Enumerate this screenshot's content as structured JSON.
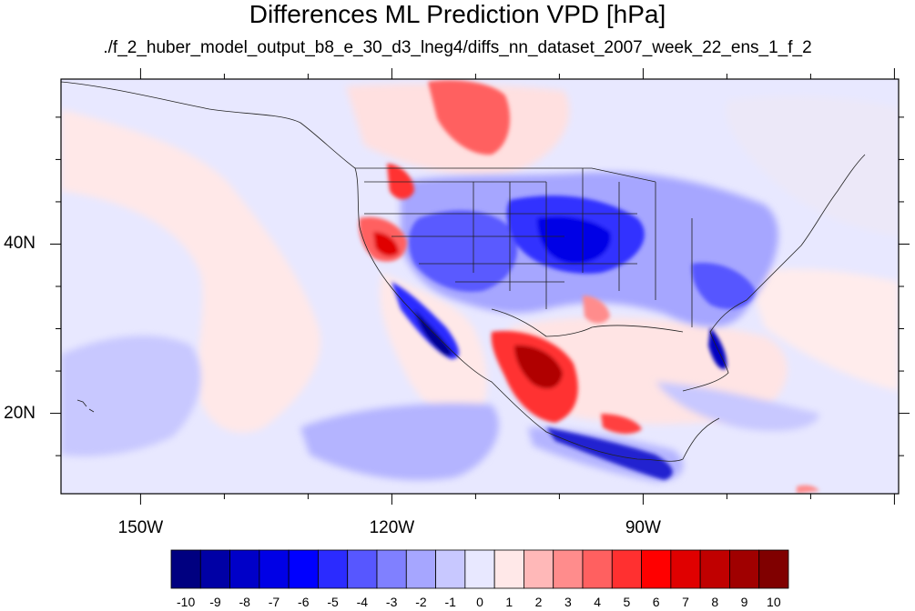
{
  "title": "Differences ML Prediction VPD [hPa]",
  "subtitle": "./f_2_huber_model_output_b8_e_30_d3_lneg4/diffs_nn_dataset_2007_week_22_ens_1_f_2",
  "map": {
    "projection": "equirectangular",
    "lon_range": [
      -159.5,
      -59.5
    ],
    "lat_range": [
      10.5,
      59.5
    ],
    "lon_labels": [
      "150W",
      "120W",
      "90W"
    ],
    "lat_labels": [
      "40N",
      "20N"
    ]
  },
  "colorbar": {
    "labels": [
      "-10",
      "-9",
      "-8",
      "-7",
      "-6",
      "-5",
      "-4",
      "-3",
      "-2",
      "-1",
      "0",
      "1",
      "2",
      "3",
      "4",
      "5",
      "6",
      "7",
      "8",
      "9",
      "10"
    ],
    "colors": [
      "#000080",
      "#0000a5",
      "#0000c8",
      "#0000e6",
      "#0000ff",
      "#2b2bff",
      "#5757ff",
      "#8080ff",
      "#a6a6ff",
      "#c8c8ff",
      "#e8e8ff",
      "#ffe8e8",
      "#ffb8b8",
      "#ff8c8c",
      "#ff6060",
      "#ff3030",
      "#ff0000",
      "#e00000",
      "#c00000",
      "#a00000",
      "#800000"
    ]
  },
  "colors": {
    "ocean_base": "#e6e6fa",
    "land_base": "#f4f4ff",
    "positive": "#ff4d4d",
    "negative": "#3333ff"
  }
}
